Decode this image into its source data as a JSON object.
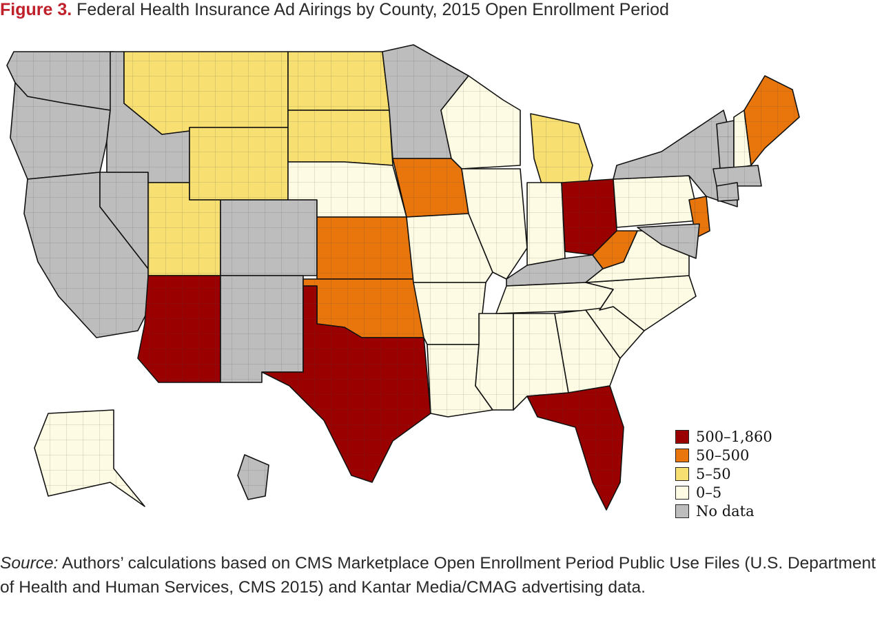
{
  "figure": {
    "label": "Figure 3.",
    "title": "Federal Health Insurance Ad Airings by County, 2015 Open Enrollment Period"
  },
  "legend": {
    "items": [
      {
        "label": "500–1,860",
        "color": "#9b0000"
      },
      {
        "label": "50–500",
        "color": "#e8760c"
      },
      {
        "label": "5–50",
        "color": "#f7df72"
      },
      {
        "label": "0–5",
        "color": "#fdfbe3"
      },
      {
        "label": "No data",
        "color": "#bdbdbd"
      }
    ]
  },
  "map_data": {
    "type": "choropleth",
    "unit": "county",
    "scale": [
      "500–1,860",
      "50–500",
      "5–50",
      "0–5",
      "No data"
    ],
    "states": [
      {
        "name": "Washington",
        "category": "No data"
      },
      {
        "name": "Oregon",
        "category": "No data"
      },
      {
        "name": "California",
        "category": "No data"
      },
      {
        "name": "Nevada",
        "category": "No data"
      },
      {
        "name": "Idaho",
        "category": "No data"
      },
      {
        "name": "Utah",
        "category": "5–50"
      },
      {
        "name": "Arizona",
        "category": "500–1,860"
      },
      {
        "name": "Colorado",
        "category": "No data"
      },
      {
        "name": "New Mexico",
        "category": "No data"
      },
      {
        "name": "Montana",
        "category": "5–50"
      },
      {
        "name": "Wyoming",
        "category": "5–50"
      },
      {
        "name": "North Dakota",
        "category": "5–50"
      },
      {
        "name": "South Dakota",
        "category": "5–50"
      },
      {
        "name": "Nebraska",
        "category": "0–5"
      },
      {
        "name": "Kansas",
        "category": "50–500"
      },
      {
        "name": "Oklahoma",
        "category": "50–500"
      },
      {
        "name": "Texas",
        "category": "500–1,860"
      },
      {
        "name": "Minnesota",
        "category": "No data"
      },
      {
        "name": "Iowa",
        "category": "50–500"
      },
      {
        "name": "Missouri",
        "category": "0–5"
      },
      {
        "name": "Arkansas",
        "category": "0–5"
      },
      {
        "name": "Louisiana",
        "category": "0–5"
      },
      {
        "name": "Wisconsin",
        "category": "0–5"
      },
      {
        "name": "Illinois",
        "category": "0–5"
      },
      {
        "name": "Mississippi",
        "category": "0–5"
      },
      {
        "name": "Michigan",
        "category": "5–50"
      },
      {
        "name": "Indiana",
        "category": "0–5"
      },
      {
        "name": "Ohio",
        "category": "500–1,860"
      },
      {
        "name": "Kentucky",
        "category": "No data"
      },
      {
        "name": "Tennessee",
        "category": "0–5"
      },
      {
        "name": "Alabama",
        "category": "0–5"
      },
      {
        "name": "Georgia",
        "category": "0–5"
      },
      {
        "name": "Florida",
        "category": "500–1,860"
      },
      {
        "name": "South Carolina",
        "category": "0–5"
      },
      {
        "name": "North Carolina",
        "category": "0–5"
      },
      {
        "name": "Virginia",
        "category": "0–5"
      },
      {
        "name": "West Virginia",
        "category": "50–500"
      },
      {
        "name": "Pennsylvania",
        "category": "0–5"
      },
      {
        "name": "New York",
        "category": "No data"
      },
      {
        "name": "Vermont",
        "category": "No data"
      },
      {
        "name": "New Hampshire",
        "category": "0–5"
      },
      {
        "name": "Maine",
        "category": "50–500"
      },
      {
        "name": "Massachusetts",
        "category": "No data"
      },
      {
        "name": "Connecticut",
        "category": "No data"
      },
      {
        "name": "New Jersey",
        "category": "50–500"
      },
      {
        "name": "Maryland",
        "category": "No data"
      },
      {
        "name": "Alaska",
        "category": "0–5"
      },
      {
        "name": "Hawaii",
        "category": "No data"
      }
    ]
  },
  "source": {
    "label": "Source:",
    "text": " Authors’ calculations based on CMS Marketplace Open Enrollment Period Public Use Files (U.S. Department of Health and Human Services, CMS 2015) and Kantar Media/CMAG advertising data."
  }
}
